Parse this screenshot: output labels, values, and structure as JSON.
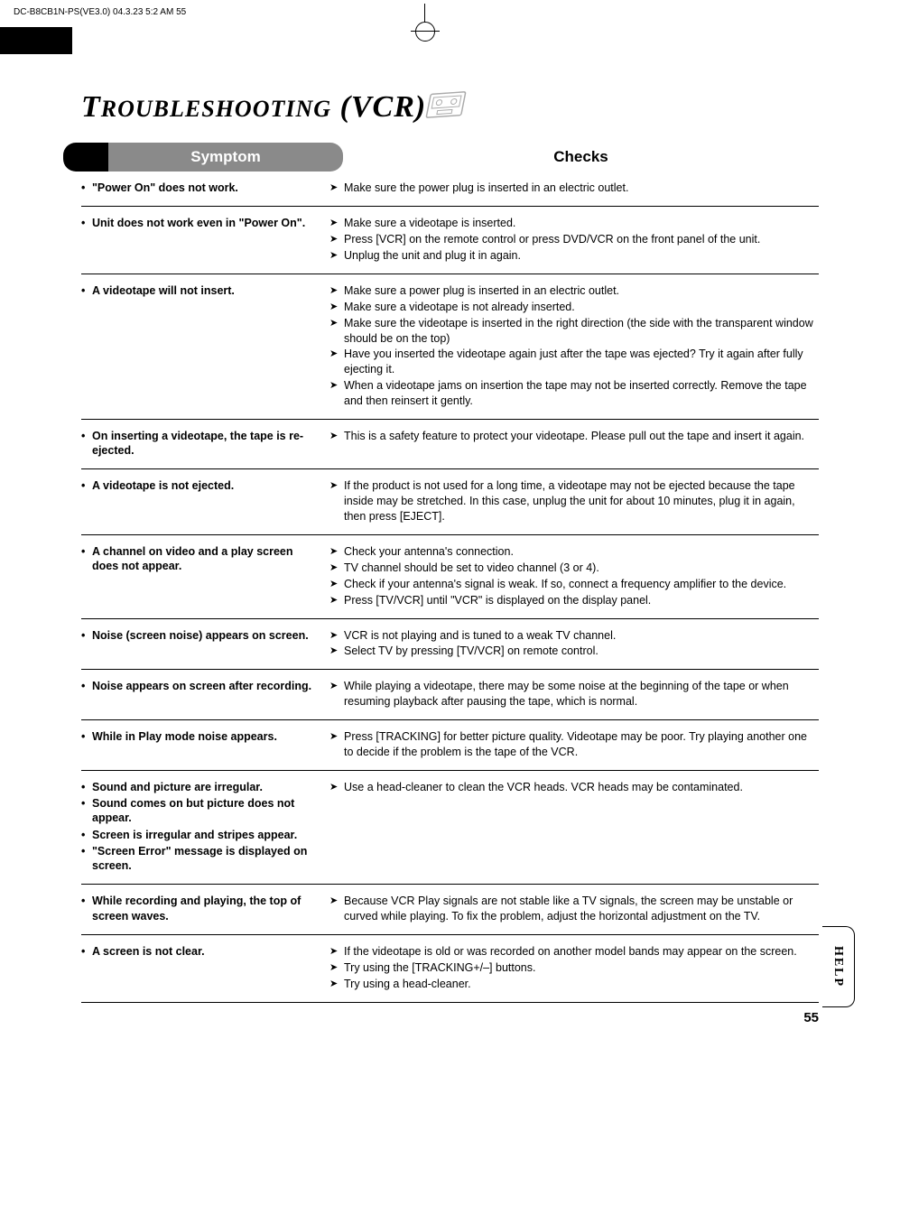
{
  "print_header": "DC-B8CB1N-PS(VE3.0)  04.3.23 5:2 AM      55",
  "title_main": "T",
  "title_rest": "ROUBLESHOOTING",
  "title_paren": "(VCR)",
  "header": {
    "symptom": "Symptom",
    "checks": "Checks"
  },
  "rows": [
    {
      "symptoms": [
        "\"Power On\" does not work."
      ],
      "checks": [
        "Make sure the power plug is inserted in an electric outlet."
      ]
    },
    {
      "symptoms": [
        "Unit does not work even in \"Power On\"."
      ],
      "checks": [
        "Make sure a videotape is inserted.",
        "Press [VCR] on the remote control or press DVD/VCR on the front panel of the unit.",
        "Unplug the unit and plug it in again."
      ]
    },
    {
      "symptoms": [
        "A videotape will not insert."
      ],
      "checks": [
        "Make sure a power plug is inserted in an electric outlet.",
        "Make sure a videotape is not already inserted.",
        "Make sure the videotape is inserted in the right direction (the side with the transparent window should be on the top)",
        "Have you inserted the videotape again just after the tape was ejected? Try it again after fully ejecting it.",
        "When a videotape jams on insertion the tape may not be inserted correctly. Remove the tape and then reinsert it gently."
      ]
    },
    {
      "symptoms": [
        "On inserting a videotape, the tape is re-ejected."
      ],
      "checks": [
        "This is a safety feature to protect your videotape. Please pull out the tape and insert it again."
      ]
    },
    {
      "symptoms": [
        "A videotape is not ejected."
      ],
      "checks": [
        "If the product is not used for a long time, a videotape may not be ejected because the tape inside may be stretched. In this case, unplug the unit for about 10 minutes, plug it in again, then press [EJECT]."
      ]
    },
    {
      "symptoms": [
        "A channel on video and a play screen does not appear."
      ],
      "checks": [
        "Check your antenna's connection.",
        "TV channel should be set to video channel (3 or 4).",
        "Check if your antenna's signal is weak. If so, connect a frequency amplifier to the device.",
        "Press [TV/VCR] until \"VCR\" is displayed on the display panel."
      ]
    },
    {
      "symptoms": [
        "Noise (screen noise) appears on screen."
      ],
      "checks": [
        "VCR is not playing and is tuned to a weak TV channel.",
        "Select TV by pressing [TV/VCR] on remote control."
      ]
    },
    {
      "symptoms": [
        "Noise appears on screen after recording."
      ],
      "checks": [
        "While playing a videotape, there may be some noise at the beginning of the tape or when resuming playback after pausing the tape, which is normal."
      ]
    },
    {
      "symptoms": [
        "While in Play mode noise appears."
      ],
      "checks": [
        "Press [TRACKING] for better picture quality. Videotape may be poor. Try playing another one to decide if the problem is the tape of the VCR."
      ]
    },
    {
      "symptoms": [
        "Sound and picture are irregular.",
        "Sound comes on but picture does not appear.",
        "Screen is irregular and stripes appear.",
        "\"Screen Error\" message is displayed on screen."
      ],
      "checks": [
        "Use a head-cleaner to clean the VCR heads. VCR heads may be contaminated."
      ]
    },
    {
      "symptoms": [
        "While recording and playing, the top of screen waves."
      ],
      "checks": [
        "Because VCR Play signals are not stable like a TV signals, the screen may be unstable or curved while playing. To fix the problem, adjust the horizontal adjustment on the TV."
      ]
    },
    {
      "symptoms": [
        "A screen is not clear."
      ],
      "checks": [
        "If the videotape is old or was recorded on another model bands may appear on the screen.",
        "Try using the [TRACKING+/–] buttons.",
        "Try using a head-cleaner."
      ]
    }
  ],
  "page_number": "55",
  "help_label": "HELP"
}
